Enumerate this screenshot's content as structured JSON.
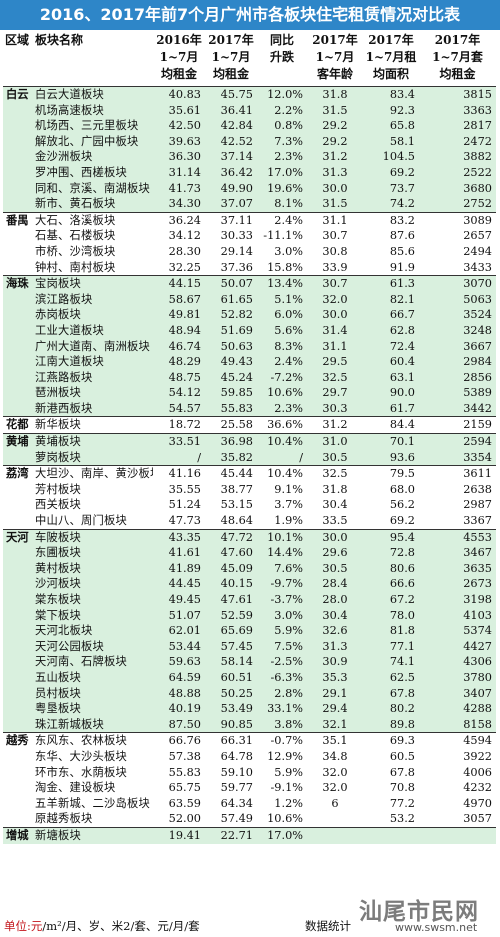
{
  "title": "2016、2017年前7个月广州市各板块住宅租赁情况对比表",
  "headers": {
    "region": "区域",
    "block": "板块名称",
    "rent2016": [
      "2016年",
      "1~7月",
      "均租金"
    ],
    "rent2017": [
      "2017年",
      "1~7月",
      "均租金"
    ],
    "yoy": [
      "同比",
      "升跌"
    ],
    "age2017": [
      "2017年",
      "1~7月",
      "客年龄"
    ],
    "area2017": [
      "2017年",
      "1~7月租",
      "均面积"
    ],
    "set2017": [
      "2017年",
      "1~7月套",
      "均租金"
    ]
  },
  "rows": [
    {
      "region": "白云",
      "name": "白云大道板块",
      "r16": "40.83",
      "r17": "45.75",
      "yoy": "12.0%",
      "age": "31.8",
      "area": "83.4",
      "set": "3815",
      "grp": true,
      "shade": true
    },
    {
      "region": "",
      "name": "机场高速板块",
      "r16": "35.61",
      "r17": "36.41",
      "yoy": "2.2%",
      "age": "31.5",
      "area": "92.3",
      "set": "3363",
      "shade": true
    },
    {
      "region": "",
      "name": "机场西、三元里板块",
      "r16": "42.50",
      "r17": "42.84",
      "yoy": "0.8%",
      "age": "29.2",
      "area": "65.8",
      "set": "2817",
      "shade": true
    },
    {
      "region": "",
      "name": "解放北、广园中板块",
      "r16": "39.63",
      "r17": "42.52",
      "yoy": "7.3%",
      "age": "29.2",
      "area": "58.1",
      "set": "2472",
      "shade": true
    },
    {
      "region": "",
      "name": "金沙洲板块",
      "r16": "36.30",
      "r17": "37.14",
      "yoy": "2.3%",
      "age": "31.2",
      "area": "104.5",
      "set": "3882",
      "shade": true
    },
    {
      "region": "",
      "name": "罗冲围、西槎板块",
      "r16": "31.14",
      "r17": "36.42",
      "yoy": "17.0%",
      "age": "31.3",
      "area": "69.2",
      "set": "2522",
      "shade": true
    },
    {
      "region": "",
      "name": "同和、京溪、南湖板块",
      "r16": "41.73",
      "r17": "49.90",
      "yoy": "19.6%",
      "age": "30.0",
      "area": "73.7",
      "set": "3680",
      "shade": true
    },
    {
      "region": "",
      "name": "新市、黄石板块",
      "r16": "34.30",
      "r17": "37.07",
      "yoy": "8.1%",
      "age": "31.5",
      "area": "74.2",
      "set": "2752",
      "shade": true
    },
    {
      "region": "番禺",
      "name": "大石、洛溪板块",
      "r16": "36.24",
      "r17": "37.11",
      "yoy": "2.4%",
      "age": "31.1",
      "area": "83.2",
      "set": "3089",
      "grp": true
    },
    {
      "region": "",
      "name": "石基、石楼板块",
      "r16": "34.12",
      "r17": "30.33",
      "yoy": "-11.1%",
      "age": "30.7",
      "area": "87.6",
      "set": "2657"
    },
    {
      "region": "",
      "name": "市桥、沙湾板块",
      "r16": "28.30",
      "r17": "29.14",
      "yoy": "3.0%",
      "age": "30.8",
      "area": "85.6",
      "set": "2494"
    },
    {
      "region": "",
      "name": "钟村、南村板块",
      "r16": "32.25",
      "r17": "37.36",
      "yoy": "15.8%",
      "age": "33.9",
      "area": "91.9",
      "set": "3433"
    },
    {
      "region": "海珠",
      "name": "宝岗板块",
      "r16": "44.15",
      "r17": "50.07",
      "yoy": "13.4%",
      "age": "30.7",
      "area": "61.3",
      "set": "3070",
      "grp": true,
      "shade": true
    },
    {
      "region": "",
      "name": "滨江路板块",
      "r16": "58.67",
      "r17": "61.65",
      "yoy": "5.1%",
      "age": "32.0",
      "area": "82.1",
      "set": "5063",
      "shade": true
    },
    {
      "region": "",
      "name": "赤岗板块",
      "r16": "49.81",
      "r17": "52.82",
      "yoy": "6.0%",
      "age": "30.0",
      "area": "66.7",
      "set": "3524",
      "shade": true
    },
    {
      "region": "",
      "name": "工业大道板块",
      "r16": "48.94",
      "r17": "51.69",
      "yoy": "5.6%",
      "age": "31.4",
      "area": "62.8",
      "set": "3248",
      "shade": true
    },
    {
      "region": "",
      "name": "广州大道南、南洲板块",
      "r16": "46.74",
      "r17": "50.63",
      "yoy": "8.3%",
      "age": "31.1",
      "area": "72.4",
      "set": "3667",
      "shade": true
    },
    {
      "region": "",
      "name": "江南大道板块",
      "r16": "48.29",
      "r17": "49.43",
      "yoy": "2.4%",
      "age": "29.5",
      "area": "60.4",
      "set": "2984",
      "shade": true
    },
    {
      "region": "",
      "name": "江燕路板块",
      "r16": "48.75",
      "r17": "45.24",
      "yoy": "-7.2%",
      "age": "32.5",
      "area": "63.1",
      "set": "2856",
      "shade": true
    },
    {
      "region": "",
      "name": "琶洲板块",
      "r16": "54.12",
      "r17": "59.85",
      "yoy": "10.6%",
      "age": "29.7",
      "area": "90.0",
      "set": "5389",
      "shade": true
    },
    {
      "region": "",
      "name": "新港西板块",
      "r16": "54.57",
      "r17": "55.83",
      "yoy": "2.3%",
      "age": "30.3",
      "area": "61.7",
      "set": "3442",
      "shade": true
    },
    {
      "region": "花都",
      "name": "新华板块",
      "r16": "18.72",
      "r17": "25.58",
      "yoy": "36.6%",
      "age": "31.2",
      "area": "84.4",
      "set": "2159",
      "grp": true
    },
    {
      "region": "黄埔",
      "name": "黄埔板块",
      "r16": "33.51",
      "r17": "36.98",
      "yoy": "10.4%",
      "age": "31.0",
      "area": "70.1",
      "set": "2594",
      "grp": true,
      "shade": true
    },
    {
      "region": "",
      "name": "萝岗板块",
      "r16": "/",
      "r17": "35.82",
      "yoy": "/",
      "age": "30.5",
      "area": "93.6",
      "set": "3354",
      "shade": true
    },
    {
      "region": "荔湾",
      "name": "大坦沙、南岸、黄沙板块",
      "r16": "41.16",
      "r17": "45.44",
      "yoy": "10.4%",
      "age": "32.5",
      "area": "79.5",
      "set": "3611",
      "grp": true
    },
    {
      "region": "",
      "name": "芳村板块",
      "r16": "35.55",
      "r17": "38.77",
      "yoy": "9.1%",
      "age": "31.8",
      "area": "68.0",
      "set": "2638"
    },
    {
      "region": "",
      "name": "西关板块",
      "r16": "51.24",
      "r17": "53.15",
      "yoy": "3.7%",
      "age": "30.4",
      "area": "56.2",
      "set": "2987"
    },
    {
      "region": "",
      "name": "中山八、周门板块",
      "r16": "47.73",
      "r17": "48.64",
      "yoy": "1.9%",
      "age": "33.5",
      "area": "69.2",
      "set": "3367"
    },
    {
      "region": "天河",
      "name": "车陂板块",
      "r16": "43.35",
      "r17": "47.72",
      "yoy": "10.1%",
      "age": "30.0",
      "area": "95.4",
      "set": "4553",
      "grp": true,
      "shade": true
    },
    {
      "region": "",
      "name": "东圃板块",
      "r16": "41.61",
      "r17": "47.60",
      "yoy": "14.4%",
      "age": "29.6",
      "area": "72.8",
      "set": "3467",
      "shade": true
    },
    {
      "region": "",
      "name": "黄村板块",
      "r16": "41.89",
      "r17": "45.09",
      "yoy": "7.6%",
      "age": "30.5",
      "area": "80.6",
      "set": "3635",
      "shade": true
    },
    {
      "region": "",
      "name": "沙河板块",
      "r16": "44.45",
      "r17": "40.15",
      "yoy": "-9.7%",
      "age": "28.4",
      "area": "66.6",
      "set": "2673",
      "shade": true
    },
    {
      "region": "",
      "name": "棠东板块",
      "r16": "49.45",
      "r17": "47.61",
      "yoy": "-3.7%",
      "age": "28.0",
      "area": "67.2",
      "set": "3198",
      "shade": true
    },
    {
      "region": "",
      "name": "棠下板块",
      "r16": "51.07",
      "r17": "52.59",
      "yoy": "3.0%",
      "age": "30.4",
      "area": "78.0",
      "set": "4103",
      "shade": true
    },
    {
      "region": "",
      "name": "天河北板块",
      "r16": "62.01",
      "r17": "65.69",
      "yoy": "5.9%",
      "age": "32.6",
      "area": "81.8",
      "set": "5374",
      "shade": true
    },
    {
      "region": "",
      "name": "天河公园板块",
      "r16": "53.44",
      "r17": "57.45",
      "yoy": "7.5%",
      "age": "31.3",
      "area": "77.1",
      "set": "4427",
      "shade": true
    },
    {
      "region": "",
      "name": "天河南、石牌板块",
      "r16": "59.63",
      "r17": "58.14",
      "yoy": "-2.5%",
      "age": "30.9",
      "area": "74.1",
      "set": "4306",
      "shade": true
    },
    {
      "region": "",
      "name": "五山板块",
      "r16": "64.59",
      "r17": "60.51",
      "yoy": "-6.3%",
      "age": "35.3",
      "area": "62.5",
      "set": "3780",
      "shade": true
    },
    {
      "region": "",
      "name": "员村板块",
      "r16": "48.88",
      "r17": "50.25",
      "yoy": "2.8%",
      "age": "29.1",
      "area": "67.8",
      "set": "3407",
      "shade": true
    },
    {
      "region": "",
      "name": "粤垦板块",
      "r16": "40.19",
      "r17": "53.49",
      "yoy": "33.1%",
      "age": "29.4",
      "area": "80.2",
      "set": "4288",
      "shade": true
    },
    {
      "region": "",
      "name": "珠江新城板块",
      "r16": "87.50",
      "r17": "90.85",
      "yoy": "3.8%",
      "age": "32.1",
      "area": "89.8",
      "set": "8158",
      "shade": true
    },
    {
      "region": "越秀",
      "name": "东风东、农林板块",
      "r16": "66.76",
      "r17": "66.31",
      "yoy": "-0.7%",
      "age": "35.1",
      "area": "69.3",
      "set": "4594",
      "grp": true
    },
    {
      "region": "",
      "name": "东华、大沙头板块",
      "r16": "57.38",
      "r17": "64.78",
      "yoy": "12.9%",
      "age": "34.8",
      "area": "60.5",
      "set": "3922"
    },
    {
      "region": "",
      "name": "环市东、水荫板块",
      "r16": "55.83",
      "r17": "59.10",
      "yoy": "5.9%",
      "age": "32.0",
      "area": "67.8",
      "set": "4006"
    },
    {
      "region": "",
      "name": "淘金、建设板块",
      "r16": "65.75",
      "r17": "59.77",
      "yoy": "-9.1%",
      "age": "32.0",
      "area": "70.8",
      "set": "4232"
    },
    {
      "region": "",
      "name": "五羊新城、二沙岛板块",
      "r16": "63.59",
      "r17": "64.34",
      "yoy": "1.2%",
      "age": "6",
      "area": "77.2",
      "set": "4970"
    },
    {
      "region": "",
      "name": "原越秀板块",
      "r16": "52.00",
      "r17": "57.49",
      "yoy": "10.6%",
      "age": "",
      "area": "53.2",
      "set": "3057"
    },
    {
      "region": "增城",
      "name": "新塘板块",
      "r16": "19.41",
      "r17": "22.71",
      "yoy": "17.0%",
      "age": "",
      "area": "",
      "set": "",
      "grp": true,
      "shade": true
    }
  ],
  "footer": {
    "unit_label": "单位:元",
    "unit_rest": "/m²/月、岁、米2/套、元/月/套",
    "source": "数据统计"
  },
  "watermark": {
    "text": "汕尾市民网",
    "url": "www.swsm.net"
  }
}
